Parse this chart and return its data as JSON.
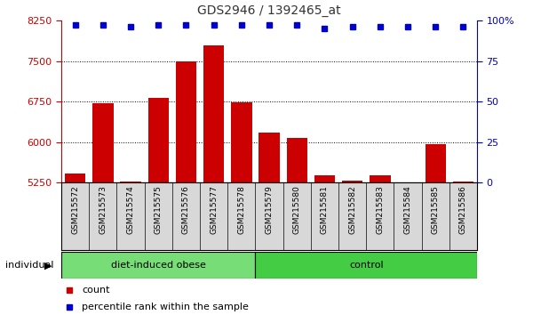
{
  "title": "GDS2946 / 1392465_at",
  "categories": [
    "GSM215572",
    "GSM215573",
    "GSM215574",
    "GSM215575",
    "GSM215576",
    "GSM215577",
    "GSM215578",
    "GSM215579",
    "GSM215580",
    "GSM215581",
    "GSM215582",
    "GSM215583",
    "GSM215584",
    "GSM215585",
    "GSM215586"
  ],
  "bar_values": [
    5420,
    6720,
    5270,
    6820,
    7490,
    7790,
    6740,
    6170,
    6080,
    5390,
    5290,
    5380,
    5250,
    5970,
    5270
  ],
  "percentile_values": [
    97,
    97,
    96,
    97,
    97,
    97,
    97,
    97,
    97,
    95,
    96,
    96,
    96,
    96,
    96
  ],
  "ylim_left": [
    5250,
    8250
  ],
  "ylim_right": [
    0,
    100
  ],
  "yticks_left": [
    5250,
    6000,
    6750,
    7500,
    8250
  ],
  "yticks_right": [
    0,
    25,
    50,
    75,
    100
  ],
  "bar_color": "#cc0000",
  "dot_color": "#0000cc",
  "group1_label": "diet-induced obese",
  "group2_label": "control",
  "group1_count": 7,
  "group2_count": 8,
  "group1_color": "#77dd77",
  "group2_color": "#44cc44",
  "bar_bg_color": "#d8d8d8",
  "plot_bg_color": "#ffffff",
  "legend_count_label": "count",
  "legend_pct_label": "percentile rank within the sample",
  "individual_label": "individual",
  "title_color": "#333333",
  "left_tick_color": "#cc0000",
  "right_tick_color": "#0000cc",
  "grid_color": "#000000"
}
